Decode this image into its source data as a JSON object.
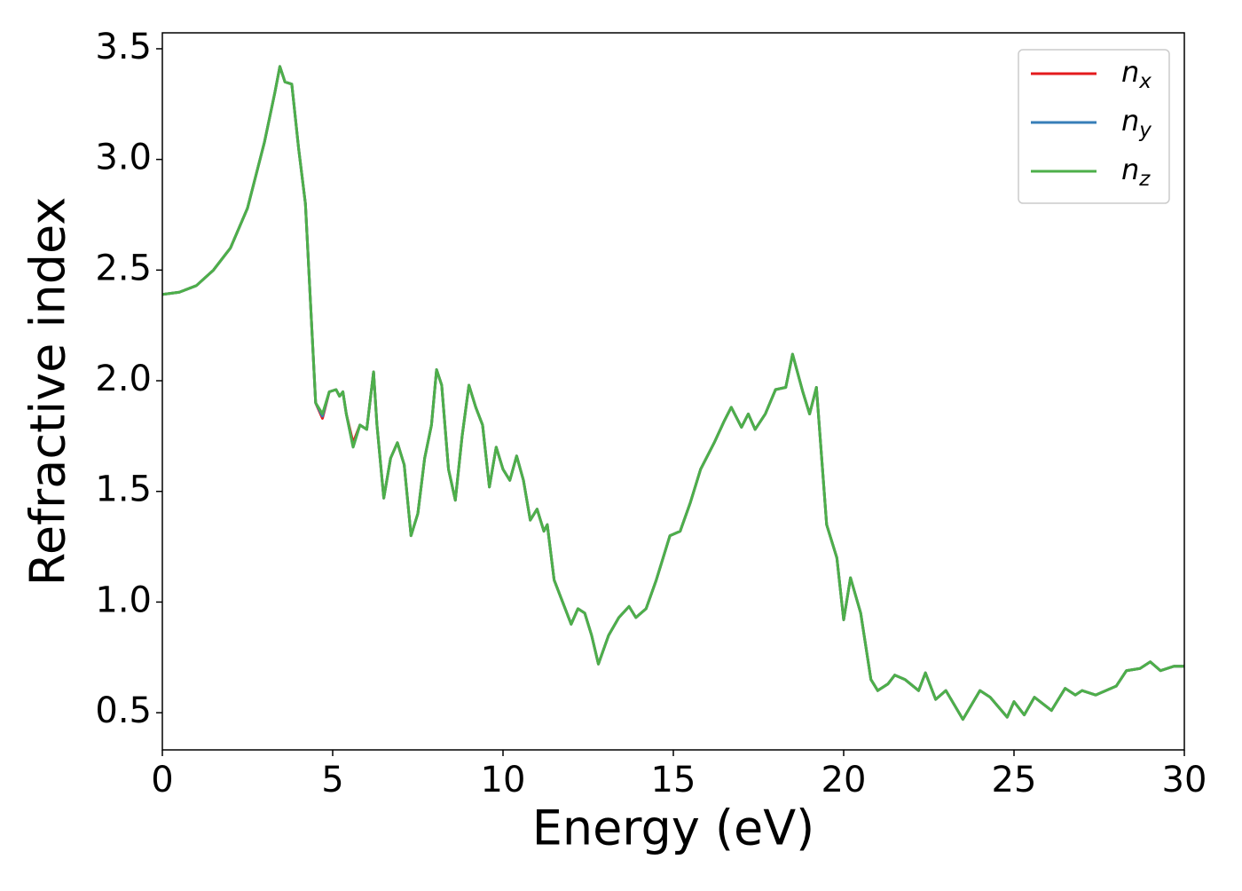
{
  "chart_data": {
    "type": "line",
    "xlabel": "Energy (eV)",
    "ylabel": "Refractive index",
    "x": [
      0,
      0.5,
      1.0,
      1.5,
      2.0,
      2.5,
      3.0,
      3.3,
      3.45,
      3.6,
      3.8,
      4.0,
      4.2,
      4.4,
      4.5,
      4.7,
      4.9,
      5.1,
      5.2,
      5.3,
      5.4,
      5.6,
      5.8,
      6.0,
      6.2,
      6.3,
      6.5,
      6.7,
      6.9,
      7.1,
      7.3,
      7.5,
      7.7,
      7.9,
      8.05,
      8.2,
      8.4,
      8.6,
      8.8,
      9.0,
      9.2,
      9.4,
      9.6,
      9.8,
      10.0,
      10.2,
      10.4,
      10.6,
      10.8,
      11.0,
      11.2,
      11.3,
      11.5,
      11.7,
      12.0,
      12.2,
      12.4,
      12.6,
      12.8,
      13.1,
      13.4,
      13.7,
      13.9,
      14.2,
      14.5,
      14.9,
      15.2,
      15.5,
      15.8,
      16.2,
      16.5,
      16.7,
      17.0,
      17.2,
      17.4,
      17.7,
      18.0,
      18.3,
      18.5,
      18.8,
      19.0,
      19.2,
      19.5,
      19.8,
      20.0,
      20.2,
      20.5,
      20.8,
      21.0,
      21.3,
      21.5,
      21.8,
      22.2,
      22.4,
      22.7,
      23.0,
      23.5,
      24.0,
      24.3,
      24.8,
      25.0,
      25.3,
      25.6,
      26.1,
      26.5,
      26.8,
      27.0,
      27.4,
      28.0,
      28.3,
      28.7,
      29.0,
      29.3,
      29.7,
      30.0
    ],
    "series": [
      {
        "name": "nx",
        "color": "#e41a1c",
        "values": [
          2.39,
          2.4,
          2.43,
          2.5,
          2.6,
          2.78,
          3.08,
          3.3,
          3.42,
          3.35,
          3.34,
          3.05,
          2.8,
          2.2,
          1.9,
          1.83,
          1.95,
          1.96,
          1.93,
          1.95,
          1.85,
          1.72,
          1.8,
          1.78,
          2.04,
          1.8,
          1.47,
          1.65,
          1.72,
          1.62,
          1.3,
          1.4,
          1.65,
          1.8,
          2.05,
          1.98,
          1.6,
          1.46,
          1.75,
          1.98,
          1.88,
          1.8,
          1.52,
          1.7,
          1.6,
          1.55,
          1.66,
          1.55,
          1.37,
          1.42,
          1.32,
          1.35,
          1.1,
          1.02,
          0.9,
          0.97,
          0.95,
          0.85,
          0.72,
          0.85,
          0.93,
          0.98,
          0.93,
          0.97,
          1.1,
          1.3,
          1.32,
          1.45,
          1.6,
          1.72,
          1.82,
          1.88,
          1.79,
          1.85,
          1.78,
          1.85,
          1.96,
          1.97,
          2.12,
          1.95,
          1.85,
          1.97,
          1.35,
          1.2,
          0.92,
          1.11,
          0.95,
          0.65,
          0.6,
          0.63,
          0.67,
          0.65,
          0.6,
          0.68,
          0.56,
          0.6,
          0.47,
          0.6,
          0.57,
          0.48,
          0.55,
          0.49,
          0.57,
          0.51,
          0.61,
          0.58,
          0.6,
          0.58,
          0.62,
          0.69,
          0.7,
          0.73,
          0.69,
          0.71,
          0.71
        ]
      },
      {
        "name": "ny",
        "color": "#377eb8",
        "values": [
          2.39,
          2.4,
          2.43,
          2.5,
          2.6,
          2.78,
          3.08,
          3.3,
          3.42,
          3.35,
          3.34,
          3.05,
          2.8,
          2.2,
          1.9,
          1.84,
          1.95,
          1.96,
          1.93,
          1.95,
          1.85,
          1.7,
          1.8,
          1.78,
          2.04,
          1.8,
          1.47,
          1.65,
          1.72,
          1.62,
          1.3,
          1.4,
          1.65,
          1.8,
          2.05,
          1.98,
          1.6,
          1.46,
          1.75,
          1.98,
          1.88,
          1.8,
          1.52,
          1.7,
          1.6,
          1.55,
          1.66,
          1.55,
          1.37,
          1.42,
          1.32,
          1.35,
          1.1,
          1.02,
          0.9,
          0.97,
          0.95,
          0.85,
          0.72,
          0.85,
          0.93,
          0.98,
          0.93,
          0.97,
          1.1,
          1.3,
          1.32,
          1.45,
          1.6,
          1.72,
          1.82,
          1.88,
          1.79,
          1.85,
          1.78,
          1.85,
          1.96,
          1.97,
          2.12,
          1.95,
          1.85,
          1.97,
          1.35,
          1.2,
          0.92,
          1.11,
          0.95,
          0.65,
          0.6,
          0.63,
          0.67,
          0.65,
          0.6,
          0.68,
          0.56,
          0.6,
          0.47,
          0.6,
          0.57,
          0.48,
          0.55,
          0.49,
          0.57,
          0.51,
          0.61,
          0.58,
          0.6,
          0.58,
          0.62,
          0.69,
          0.7,
          0.73,
          0.69,
          0.71,
          0.71
        ]
      },
      {
        "name": "nz",
        "color": "#4daf4a",
        "values": [
          2.39,
          2.4,
          2.43,
          2.5,
          2.6,
          2.78,
          3.08,
          3.3,
          3.42,
          3.35,
          3.34,
          3.05,
          2.8,
          2.2,
          1.9,
          1.85,
          1.95,
          1.96,
          1.93,
          1.95,
          1.85,
          1.7,
          1.8,
          1.78,
          2.04,
          1.8,
          1.47,
          1.65,
          1.72,
          1.62,
          1.3,
          1.4,
          1.65,
          1.8,
          2.05,
          1.98,
          1.6,
          1.46,
          1.75,
          1.98,
          1.88,
          1.8,
          1.52,
          1.7,
          1.6,
          1.55,
          1.66,
          1.55,
          1.37,
          1.42,
          1.32,
          1.35,
          1.1,
          1.02,
          0.9,
          0.97,
          0.95,
          0.85,
          0.72,
          0.85,
          0.93,
          0.98,
          0.93,
          0.97,
          1.1,
          1.3,
          1.32,
          1.45,
          1.6,
          1.72,
          1.82,
          1.88,
          1.79,
          1.85,
          1.78,
          1.85,
          1.96,
          1.97,
          2.12,
          1.95,
          1.85,
          1.97,
          1.35,
          1.2,
          0.92,
          1.11,
          0.95,
          0.65,
          0.6,
          0.63,
          0.67,
          0.65,
          0.6,
          0.68,
          0.56,
          0.6,
          0.47,
          0.6,
          0.57,
          0.48,
          0.55,
          0.49,
          0.57,
          0.51,
          0.61,
          0.58,
          0.6,
          0.58,
          0.62,
          0.69,
          0.7,
          0.73,
          0.69,
          0.71,
          0.71
        ]
      }
    ],
    "xlim": [
      0,
      30
    ],
    "xticks": [
      0,
      5,
      10,
      15,
      20,
      25,
      30
    ],
    "ylim": [
      0.332,
      3.572
    ],
    "yticks": [
      0.5,
      {
        "value": 1,
        "label": "1.0"
      },
      1.5,
      {
        "value": 2,
        "label": "2.0"
      },
      2.5,
      {
        "value": 3,
        "label": "3.0"
      },
      3.5
    ],
    "grid": false,
    "legend": "upper right"
  }
}
